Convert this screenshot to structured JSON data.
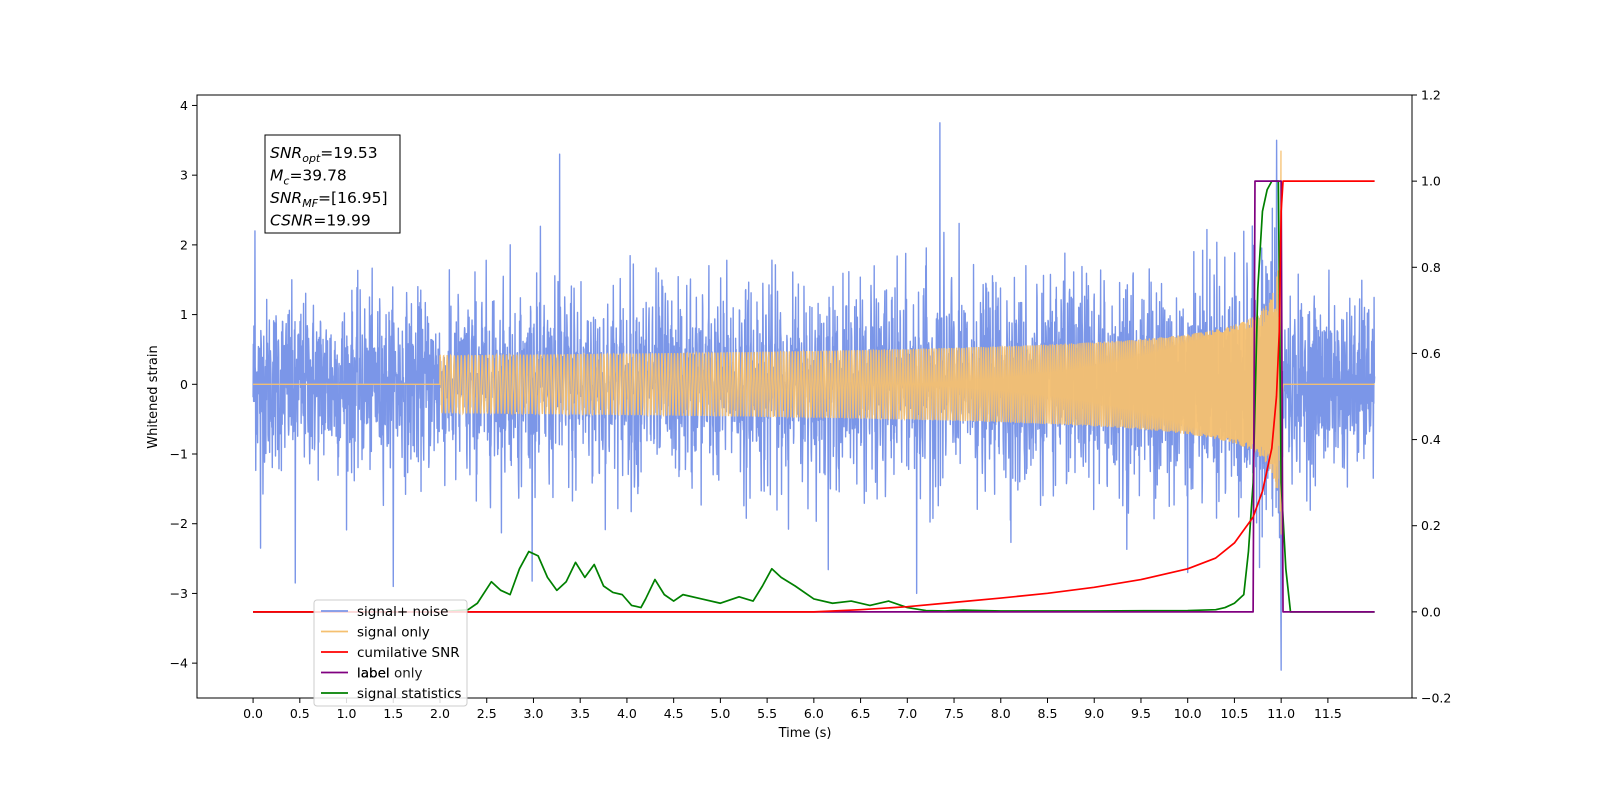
{
  "chart_data": {
    "type": "line",
    "xlabel": "Time (s)",
    "ylabel": "Whitened strain",
    "xlim": [
      -0.6,
      12.4
    ],
    "ylim_left": [
      -4.5,
      4.15
    ],
    "ylim_right": [
      -0.2,
      1.2
    ],
    "x_ticks": [
      "0.0",
      "0.5",
      "1.0",
      "1.5",
      "2.0",
      "2.5",
      "3.0",
      "3.5",
      "4.0",
      "4.5",
      "5.0",
      "5.5",
      "6.0",
      "6.5",
      "7.0",
      "7.5",
      "8.0",
      "8.5",
      "9.0",
      "9.5",
      "10.0",
      "10.5",
      "11.0",
      "11.5"
    ],
    "y_ticks_left": [
      "−4",
      "−3",
      "−2",
      "−1",
      "0",
      "1",
      "2",
      "3",
      "4"
    ],
    "y_ticks_right": [
      "−0.2",
      "0.0",
      "0.2",
      "0.4",
      "0.6",
      "0.8",
      "1.0",
      "1.2"
    ],
    "legend_placement": "lower-left",
    "annotation": {
      "lines": [
        {
          "main": "SNR",
          "sub": "opt",
          "value": "=19.53"
        },
        {
          "main": "M",
          "sub": "c",
          "value": "=39.78"
        },
        {
          "main": "SNR",
          "sub": "MF",
          "value": "=[16.95]"
        },
        {
          "main": "CSNR",
          "sub": "",
          "value": "=19.99"
        }
      ]
    },
    "series": [
      {
        "name": "signal+ noise",
        "color": "#7b96e8",
        "axis": "left",
        "kind": "noise",
        "x_range": [
          0.0,
          12.0
        ],
        "typical_range": [
          -1.7,
          1.7
        ],
        "extreme_points": [
          [
            0.02,
            2.2
          ],
          [
            0.08,
            -2.35
          ],
          [
            2.75,
            2.0
          ],
          [
            3.28,
            3.3
          ],
          [
            1.5,
            -2.9
          ],
          [
            0.45,
            -2.85
          ],
          [
            7.35,
            3.75
          ],
          [
            7.1,
            -3.0
          ],
          [
            10.95,
            3.5
          ],
          [
            11.0,
            -4.1
          ],
          [
            10.0,
            -2.7
          ]
        ]
      },
      {
        "name": "signal only",
        "color": "#f5c070",
        "axis": "left",
        "kind": "chirp",
        "x_range": [
          0.0,
          12.0
        ],
        "merger_time": 11.0,
        "peak_amplitude": 3.65
      },
      {
        "name": "cumilative SNR",
        "color": "#ff0000",
        "axis": "right",
        "x": [
          0.0,
          6.0,
          6.5,
          7.0,
          7.5,
          8.0,
          8.5,
          9.0,
          9.5,
          10.0,
          10.3,
          10.5,
          10.7,
          10.8,
          10.9,
          10.95,
          10.98,
          11.0,
          11.02,
          12.0
        ],
        "y": [
          0.0,
          0.0,
          0.005,
          0.012,
          0.022,
          0.032,
          0.043,
          0.057,
          0.075,
          0.1,
          0.125,
          0.16,
          0.22,
          0.28,
          0.38,
          0.5,
          0.65,
          0.93,
          1.0,
          1.0
        ]
      },
      {
        "name": "label",
        "color": "#800080",
        "axis": "right",
        "x": [
          0.0,
          10.7,
          10.72,
          11.0,
          11.02,
          12.0
        ],
        "y": [
          0.0,
          0.0,
          1.0,
          1.0,
          0.0,
          0.0
        ]
      },
      {
        "name": "signal statistics",
        "color": "#008000",
        "axis": "right",
        "x": [
          0.0,
          2.0,
          2.3,
          2.4,
          2.55,
          2.65,
          2.75,
          2.85,
          2.95,
          3.05,
          3.15,
          3.25,
          3.35,
          3.45,
          3.55,
          3.65,
          3.75,
          3.85,
          3.95,
          4.05,
          4.15,
          4.2,
          4.3,
          4.4,
          4.5,
          4.6,
          4.8,
          5.0,
          5.2,
          5.35,
          5.45,
          5.55,
          5.65,
          5.8,
          6.0,
          6.2,
          6.4,
          6.6,
          6.8,
          7.0,
          7.2,
          7.4,
          7.6,
          7.8,
          8.0,
          9.0,
          10.0,
          10.3,
          10.4,
          10.5,
          10.6,
          10.65,
          10.7,
          10.75,
          10.8,
          10.85,
          10.9,
          10.95,
          10.97,
          11.0,
          11.05,
          11.1,
          12.0
        ],
        "y": [
          0.0,
          0.0,
          0.005,
          0.02,
          0.07,
          0.05,
          0.04,
          0.1,
          0.14,
          0.13,
          0.08,
          0.05,
          0.07,
          0.115,
          0.08,
          0.11,
          0.06,
          0.045,
          0.04,
          0.015,
          0.01,
          0.03,
          0.075,
          0.04,
          0.025,
          0.04,
          0.03,
          0.02,
          0.035,
          0.025,
          0.06,
          0.1,
          0.08,
          0.06,
          0.03,
          0.02,
          0.025,
          0.015,
          0.025,
          0.01,
          0.003,
          0.002,
          0.004,
          0.003,
          0.002,
          0.002,
          0.003,
          0.005,
          0.01,
          0.02,
          0.04,
          0.14,
          0.3,
          0.75,
          0.93,
          0.98,
          1.0,
          1.0,
          1.0,
          0.3,
          0.1,
          0.0,
          0.0
        ]
      }
    ],
    "legend_extra": {
      "label": "label only",
      "color": "#dddddd"
    }
  }
}
